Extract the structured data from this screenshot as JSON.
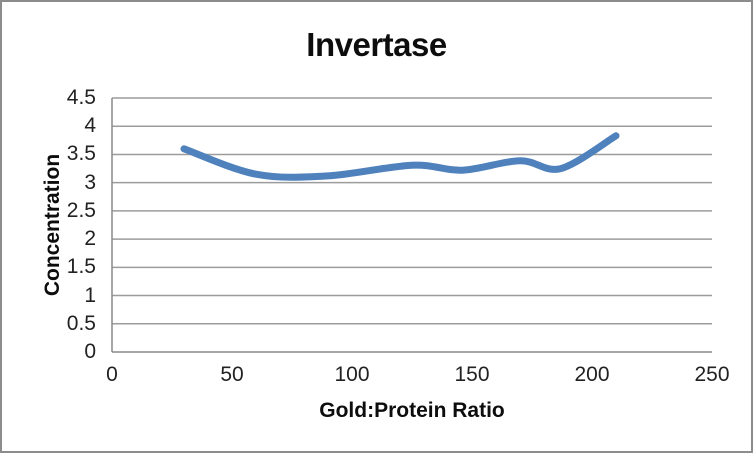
{
  "chart_data": {
    "type": "line",
    "title": "Invertase",
    "xlabel": "Gold:Protein Ratio",
    "ylabel": "Concentration",
    "series": [
      {
        "name": "Invertase",
        "smooth": true,
        "points": [
          [
            30,
            3.6
          ],
          [
            60,
            3.15
          ],
          [
            90,
            3.12
          ],
          [
            125,
            3.31
          ],
          [
            146,
            3.22
          ],
          [
            170,
            3.39
          ],
          [
            187,
            3.25
          ],
          [
            210,
            3.83
          ]
        ]
      }
    ],
    "xlim": [
      0,
      250
    ],
    "ylim": [
      0,
      4.5
    ],
    "xticks": [
      0,
      50,
      100,
      150,
      200,
      250
    ],
    "yticks": [
      0,
      0.5,
      1,
      1.5,
      2,
      2.5,
      3,
      3.5,
      4,
      4.5
    ],
    "grid": "horizontal",
    "legend_position": "none"
  },
  "style": {
    "line_color": "#4F81BD",
    "gridline_color": "#9C9C9C",
    "axis_color": "#8A8A8A",
    "border_color": "#8C8C8C",
    "text_color": "#222222",
    "background": "#FFFFFF"
  }
}
